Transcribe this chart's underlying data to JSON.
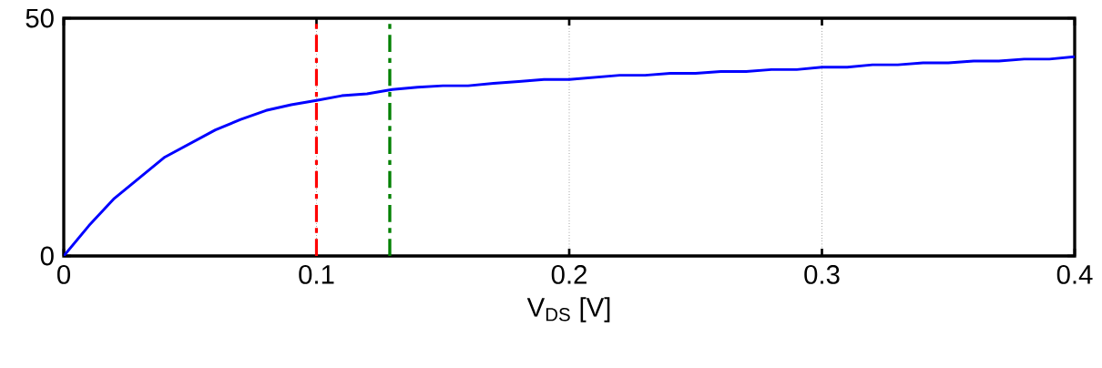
{
  "chart_data": {
    "type": "line",
    "xlabel": "V$_{DS}$  [V]",
    "x": [
      0,
      0.01,
      0.02,
      0.04,
      0.06,
      0.07,
      0.08,
      0.09,
      0.1,
      0.11,
      0.12,
      0.13,
      0.14,
      0.15,
      0.16,
      0.17,
      0.18,
      0.19,
      0.2,
      0.22,
      0.23,
      0.24,
      0.25,
      0.26,
      0.27,
      0.28,
      0.29,
      0.3,
      0.31,
      0.32,
      0.33,
      0.34,
      0.35,
      0.36,
      0.37,
      0.38,
      0.39,
      0.4
    ],
    "series": [
      {
        "color": "#0000ff",
        "values": [
          0,
          6.4,
          12.1,
          20.8,
          26.5,
          28.7,
          30.6,
          31.8,
          32.7,
          33.7,
          34.1,
          35.0,
          35.5,
          35.8,
          35.8,
          36.3,
          36.7,
          37.1,
          37.1,
          38.0,
          38.0,
          38.4,
          38.4,
          38.8,
          38.8,
          39.2,
          39.2,
          39.7,
          39.7,
          40.2,
          40.2,
          40.6,
          40.6,
          41.0,
          41.0,
          41.4,
          41.4,
          41.9
        ]
      }
    ],
    "xlim": [
      0,
      0.4
    ],
    "ylim": [
      0,
      50
    ],
    "xticks": [
      0,
      0.1,
      0.2,
      0.3,
      0.4
    ],
    "yticks": [
      0,
      50
    ],
    "grid": "x",
    "line_style": "solid",
    "marker": "none",
    "ref_lines": [
      {
        "axis": "x",
        "value": 0.1,
        "color": "#ff0000",
        "line_style": "dashdot"
      },
      {
        "axis": "x",
        "value": 0.129,
        "color": "#008000",
        "line_style": "dashdot"
      }
    ]
  }
}
